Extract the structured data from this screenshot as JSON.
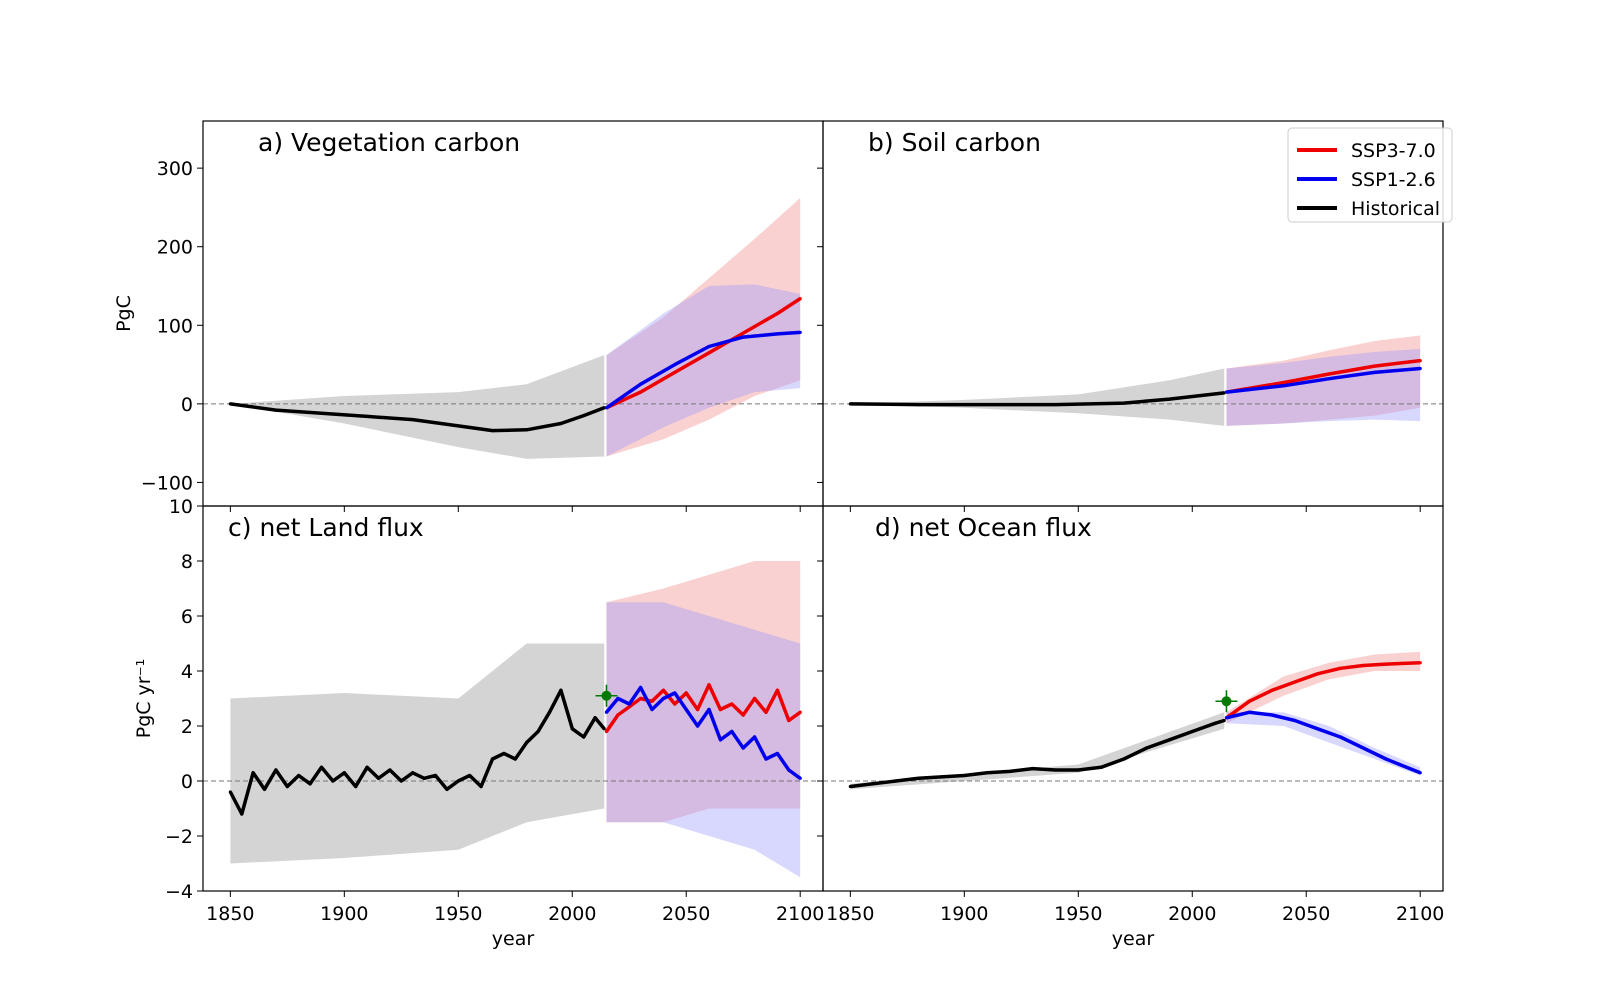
{
  "legend": {
    "placement": "top-right of panel b",
    "items": [
      {
        "label": "SSP3-7.0",
        "color": "#ee0000"
      },
      {
        "label": "SSP1-2.6",
        "color": "#0000ee"
      },
      {
        "label": "Historical",
        "color": "#000000"
      }
    ]
  },
  "colors": {
    "historical": "#000000",
    "ssp370": "#ee0000",
    "ssp126": "#0000ee",
    "historical_band": "#b0b0b0",
    "ssp370_band": "#f5a3a3",
    "ssp126_band": "#8f8fff",
    "marker": "#007a00"
  },
  "shared": {
    "xlabel": "year",
    "xticks": [
      1850,
      1900,
      1950,
      2000,
      2050,
      2100
    ],
    "xlim": [
      1838,
      2110
    ]
  },
  "chart_data": [
    {
      "type": "line",
      "id": "a",
      "title": "a) Vegetation carbon",
      "ylabel": "PgC",
      "ylim": [
        -130,
        360
      ],
      "yticks": [
        -100,
        0,
        100,
        200,
        300
      ],
      "ytick_labels": [
        "−100",
        "0",
        "100",
        "200",
        "300"
      ],
      "zero_line": true,
      "series": [
        {
          "name": "Historical",
          "x": [
            1850,
            1870,
            1890,
            1910,
            1930,
            1950,
            1965,
            1980,
            1995,
            2005,
            2014
          ],
          "y": [
            0,
            -8,
            -12,
            -16,
            -20,
            -28,
            -34,
            -33,
            -25,
            -15,
            -5
          ]
        },
        {
          "name": "SSP3-7.0",
          "x": [
            2015,
            2030,
            2045,
            2060,
            2075,
            2090,
            2100
          ],
          "y": [
            -5,
            15,
            40,
            65,
            90,
            115,
            134
          ]
        },
        {
          "name": "SSP1-2.6",
          "x": [
            2015,
            2030,
            2045,
            2060,
            2075,
            2090,
            2100
          ],
          "y": [
            -5,
            25,
            50,
            73,
            85,
            89,
            91
          ]
        }
      ],
      "bands": [
        {
          "name": "Historical",
          "x": [
            1850,
            1900,
            1950,
            1980,
            2014
          ],
          "lower": [
            0,
            -25,
            -55,
            -70,
            -67
          ],
          "upper": [
            0,
            10,
            15,
            25,
            62
          ]
        },
        {
          "name": "SSP3-7.0",
          "x": [
            2015,
            2040,
            2060,
            2080,
            2100
          ],
          "lower": [
            -67,
            -45,
            -20,
            10,
            30
          ],
          "upper": [
            62,
            110,
            160,
            210,
            262
          ]
        },
        {
          "name": "SSP1-2.6",
          "x": [
            2015,
            2040,
            2060,
            2080,
            2100
          ],
          "lower": [
            -67,
            -30,
            -5,
            15,
            20
          ],
          "upper": [
            62,
            115,
            150,
            152,
            140
          ]
        }
      ]
    },
    {
      "type": "line",
      "id": "b",
      "title": "b) Soil carbon",
      "ylabel": "",
      "ylim": [
        -130,
        360
      ],
      "yticks": [
        -100,
        0,
        100,
        200,
        300
      ],
      "ytick_labels": [],
      "zero_line": true,
      "series": [
        {
          "name": "Historical",
          "x": [
            1850,
            1880,
            1910,
            1940,
            1970,
            1990,
            2014
          ],
          "y": [
            0,
            -1,
            -1,
            -1,
            1,
            6,
            14
          ]
        },
        {
          "name": "SSP3-7.0",
          "x": [
            2015,
            2040,
            2060,
            2080,
            2100
          ],
          "y": [
            15,
            27,
            38,
            48,
            55
          ]
        },
        {
          "name": "SSP1-2.6",
          "x": [
            2015,
            2040,
            2060,
            2080,
            2100
          ],
          "y": [
            15,
            23,
            32,
            40,
            45
          ]
        }
      ],
      "bands": [
        {
          "name": "Historical",
          "x": [
            1850,
            1900,
            1950,
            1990,
            2014
          ],
          "lower": [
            0,
            -5,
            -12,
            -20,
            -28
          ],
          "upper": [
            0,
            5,
            12,
            30,
            45
          ]
        },
        {
          "name": "SSP3-7.0",
          "x": [
            2015,
            2040,
            2060,
            2080,
            2100
          ],
          "lower": [
            -28,
            -25,
            -20,
            -15,
            -5
          ],
          "upper": [
            45,
            55,
            68,
            80,
            87
          ]
        },
        {
          "name": "SSP1-2.6",
          "x": [
            2015,
            2040,
            2060,
            2080,
            2100
          ],
          "lower": [
            -28,
            -25,
            -22,
            -20,
            -22
          ],
          "upper": [
            45,
            52,
            60,
            66,
            70
          ]
        }
      ]
    },
    {
      "type": "line",
      "id": "c",
      "title": "c) net Land flux",
      "ylabel": "PgC yr⁻¹",
      "ylim": [
        -4,
        10
      ],
      "yticks": [
        -4,
        -2,
        0,
        2,
        4,
        6,
        8,
        10
      ],
      "ytick_labels": [
        "−4",
        "−2",
        "0",
        "2",
        "4",
        "6",
        "8",
        "10"
      ],
      "zero_line": true,
      "marker": {
        "x": 2015,
        "y": 3.1
      },
      "series": [
        {
          "name": "Historical",
          "x": [
            1850,
            1855,
            1860,
            1865,
            1870,
            1875,
            1880,
            1885,
            1890,
            1895,
            1900,
            1905,
            1910,
            1915,
            1920,
            1925,
            1930,
            1935,
            1940,
            1945,
            1950,
            1955,
            1960,
            1965,
            1970,
            1975,
            1980,
            1985,
            1990,
            1995,
            2000,
            2005,
            2010,
            2014
          ],
          "y": [
            -0.4,
            -1.2,
            0.3,
            -0.3,
            0.4,
            -0.2,
            0.2,
            -0.1,
            0.5,
            0.0,
            0.3,
            -0.2,
            0.5,
            0.1,
            0.4,
            0.0,
            0.3,
            0.1,
            0.2,
            -0.3,
            0.0,
            0.2,
            -0.2,
            0.8,
            1.0,
            0.8,
            1.4,
            1.8,
            2.5,
            3.3,
            1.9,
            1.6,
            2.3,
            1.9
          ]
        },
        {
          "name": "SSP3-7.0",
          "x": [
            2015,
            2020,
            2025,
            2030,
            2035,
            2040,
            2045,
            2050,
            2055,
            2060,
            2065,
            2070,
            2075,
            2080,
            2085,
            2090,
            2095,
            2100
          ],
          "y": [
            1.8,
            2.4,
            2.7,
            3.0,
            2.9,
            3.3,
            2.8,
            3.2,
            2.6,
            3.5,
            2.6,
            2.8,
            2.4,
            3.0,
            2.5,
            3.3,
            2.2,
            2.5
          ]
        },
        {
          "name": "SSP1-2.6",
          "x": [
            2015,
            2020,
            2025,
            2030,
            2035,
            2040,
            2045,
            2050,
            2055,
            2060,
            2065,
            2070,
            2075,
            2080,
            2085,
            2090,
            2095,
            2100
          ],
          "y": [
            2.5,
            3.0,
            2.8,
            3.4,
            2.6,
            3.0,
            3.2,
            2.6,
            2.0,
            2.6,
            1.5,
            1.8,
            1.2,
            1.6,
            0.8,
            1.0,
            0.4,
            0.1
          ]
        }
      ],
      "bands": [
        {
          "name": "Historical",
          "x": [
            1850,
            1900,
            1950,
            1980,
            2014
          ],
          "lower": [
            -3.0,
            -2.8,
            -2.5,
            -1.5,
            -1.0
          ],
          "upper": [
            3.0,
            3.2,
            3.0,
            5.0,
            5.0
          ]
        },
        {
          "name": "SSP3-7.0",
          "x": [
            2015,
            2040,
            2060,
            2080,
            2100
          ],
          "lower": [
            -1.5,
            -1.5,
            -1.0,
            -1.0,
            -1.0
          ],
          "upper": [
            6.5,
            7.0,
            7.5,
            8.0,
            8.0
          ]
        },
        {
          "name": "SSP1-2.6",
          "x": [
            2015,
            2040,
            2060,
            2080,
            2100
          ],
          "lower": [
            -1.5,
            -1.5,
            -2.0,
            -2.5,
            -3.5
          ],
          "upper": [
            6.5,
            6.5,
            6.0,
            5.5,
            5.0
          ]
        }
      ]
    },
    {
      "type": "line",
      "id": "d",
      "title": "d) net Ocean flux",
      "ylabel": "",
      "ylim": [
        -4,
        10
      ],
      "yticks": [
        -4,
        -2,
        0,
        2,
        4,
        6,
        8,
        10
      ],
      "ytick_labels": [],
      "zero_line": true,
      "marker": {
        "x": 2015,
        "y": 2.9
      },
      "series": [
        {
          "name": "Historical",
          "x": [
            1850,
            1860,
            1870,
            1880,
            1890,
            1900,
            1910,
            1920,
            1930,
            1940,
            1950,
            1960,
            1970,
            1980,
            1990,
            2000,
            2010,
            2014
          ],
          "y": [
            -0.2,
            -0.1,
            0.0,
            0.1,
            0.15,
            0.2,
            0.3,
            0.35,
            0.45,
            0.4,
            0.4,
            0.5,
            0.8,
            1.2,
            1.5,
            1.8,
            2.1,
            2.2
          ]
        },
        {
          "name": "SSP3-7.0",
          "x": [
            2015,
            2025,
            2035,
            2045,
            2055,
            2065,
            2075,
            2085,
            2100
          ],
          "y": [
            2.3,
            2.9,
            3.3,
            3.6,
            3.9,
            4.1,
            4.2,
            4.25,
            4.3
          ]
        },
        {
          "name": "SSP1-2.6",
          "x": [
            2015,
            2025,
            2035,
            2045,
            2055,
            2065,
            2075,
            2085,
            2100
          ],
          "y": [
            2.3,
            2.5,
            2.4,
            2.2,
            1.9,
            1.6,
            1.2,
            0.8,
            0.3
          ]
        }
      ],
      "bands": [
        {
          "name": "Historical",
          "x": [
            1850,
            1950,
            2014
          ],
          "lower": [
            -0.3,
            0.3,
            1.9
          ],
          "upper": [
            -0.1,
            0.6,
            2.5
          ]
        },
        {
          "name": "SSP3-7.0",
          "x": [
            2015,
            2040,
            2060,
            2080,
            2100
          ],
          "lower": [
            2.1,
            3.1,
            3.7,
            4.0,
            4.0
          ],
          "upper": [
            2.5,
            3.8,
            4.3,
            4.6,
            4.7
          ]
        },
        {
          "name": "SSP1-2.6",
          "x": [
            2015,
            2040,
            2060,
            2080,
            2100
          ],
          "lower": [
            2.1,
            2.0,
            1.4,
            0.8,
            0.2
          ],
          "upper": [
            2.5,
            2.5,
            2.0,
            1.2,
            0.5
          ]
        }
      ]
    }
  ]
}
